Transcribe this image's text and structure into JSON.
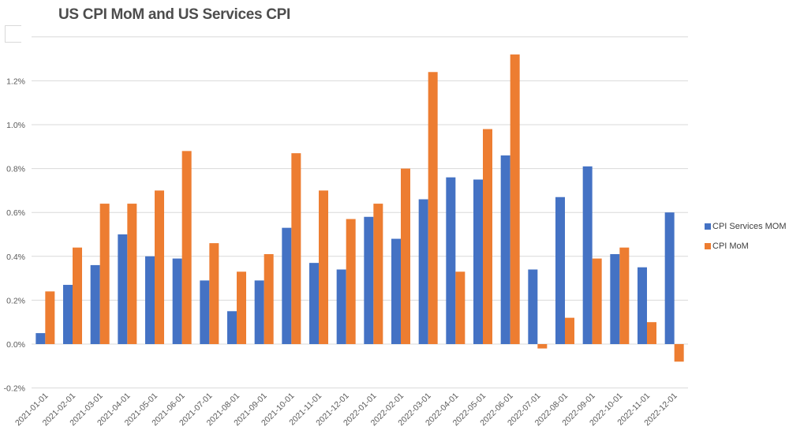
{
  "chart_data": {
    "type": "bar",
    "title": "US CPI MoM and US Services CPI",
    "xlabel": "",
    "ylabel": "",
    "ylim": [
      -0.2,
      1.4
    ],
    "yticks": [
      -0.2,
      0.0,
      0.2,
      0.4,
      0.6,
      0.8,
      1.0,
      1.2
    ],
    "ytick_labels": [
      "-0.2%",
      "0.0%",
      "0.2%",
      "0.4%",
      "0.6%",
      "0.8%",
      "1.0%",
      "1.2%"
    ],
    "grid": true,
    "legend_position": "right",
    "categories": [
      "2021-01-01",
      "2021-02-01",
      "2021-03-01",
      "2021-04-01",
      "2021-05-01",
      "2021-06-01",
      "2021-07-01",
      "2021-08-01",
      "2021-09-01",
      "2021-10-01",
      "2021-11-01",
      "2021-12-01",
      "2022-01-01",
      "2022-02-01",
      "2022-03-01",
      "2022-04-01",
      "2022-05-01",
      "2022-06-01",
      "2022-07-01",
      "2022-08-01",
      "2022-09-01",
      "2022-10-01",
      "2022-11-01",
      "2022-12-01"
    ],
    "series": [
      {
        "name": "CPI Services MOM",
        "color": "#4472c4",
        "values": [
          0.05,
          0.27,
          0.36,
          0.5,
          0.4,
          0.39,
          0.29,
          0.15,
          0.29,
          0.53,
          0.37,
          0.34,
          0.58,
          0.48,
          0.66,
          0.76,
          0.75,
          0.86,
          0.34,
          0.67,
          0.81,
          0.41,
          0.35,
          0.6
        ]
      },
      {
        "name": "CPI MoM",
        "color": "#ed7d31",
        "values": [
          0.24,
          0.44,
          0.64,
          0.64,
          0.7,
          0.88,
          0.46,
          0.33,
          0.41,
          0.87,
          0.7,
          0.57,
          0.64,
          0.8,
          1.24,
          0.33,
          0.98,
          1.32,
          -0.02,
          0.12,
          0.39,
          0.44,
          0.1,
          -0.08
        ]
      }
    ]
  }
}
